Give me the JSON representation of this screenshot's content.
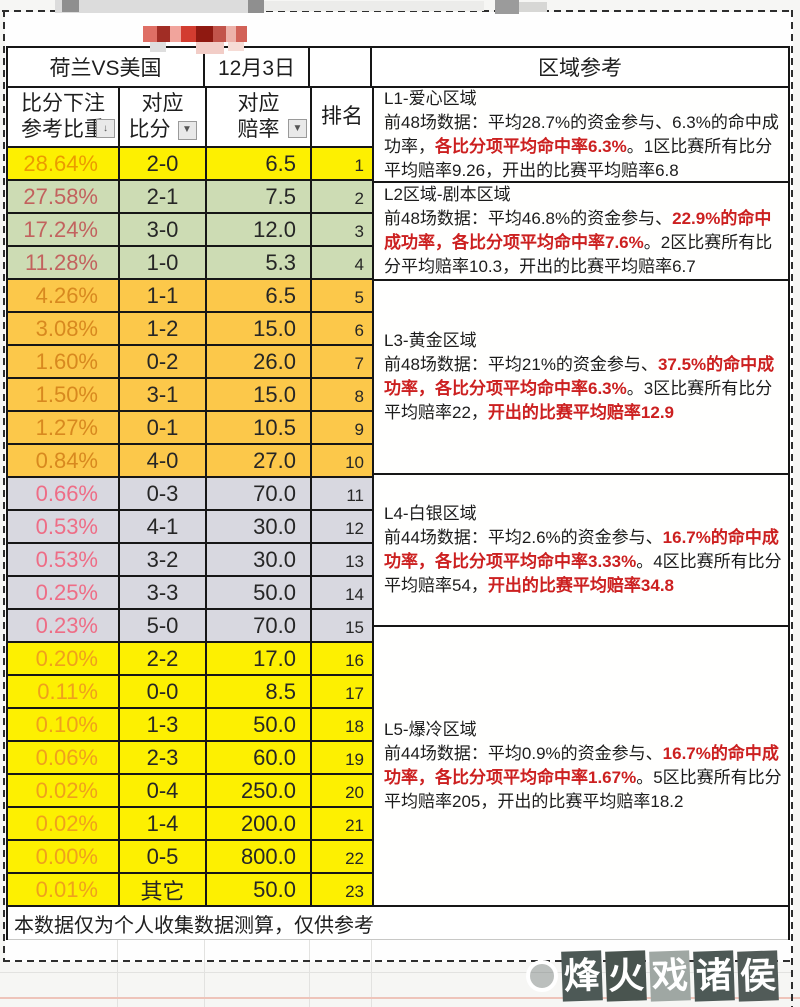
{
  "sheet": {
    "match": "荷兰VS美国",
    "date": "12月3日",
    "region_title": "区域参考",
    "columns": {
      "weight_l1": "比分下注",
      "weight_l2": "参考比重",
      "score_l1": "对应",
      "score_l2": "比分",
      "odds_l1": "对应",
      "odds_l2": "赔率",
      "rank": "排名"
    },
    "icons": {
      "sort_arrow": "↓",
      "dropdown_arrow": "▼"
    },
    "rows": [
      {
        "weight": "28.64%",
        "score": "2-0",
        "odds": "6.5",
        "rank": "1",
        "zone": 1
      },
      {
        "weight": "27.58%",
        "score": "2-1",
        "odds": "7.5",
        "rank": "2",
        "zone": 2
      },
      {
        "weight": "17.24%",
        "score": "3-0",
        "odds": "12.0",
        "rank": "3",
        "zone": 2
      },
      {
        "weight": "11.28%",
        "score": "1-0",
        "odds": "5.3",
        "rank": "4",
        "zone": 2
      },
      {
        "weight": "4.26%",
        "score": "1-1",
        "odds": "6.5",
        "rank": "5",
        "zone": 3
      },
      {
        "weight": "3.08%",
        "score": "1-2",
        "odds": "15.0",
        "rank": "6",
        "zone": 3
      },
      {
        "weight": "1.60%",
        "score": "0-2",
        "odds": "26.0",
        "rank": "7",
        "zone": 3
      },
      {
        "weight": "1.50%",
        "score": "3-1",
        "odds": "15.0",
        "rank": "8",
        "zone": 3
      },
      {
        "weight": "1.27%",
        "score": "0-1",
        "odds": "10.5",
        "rank": "9",
        "zone": 3
      },
      {
        "weight": "0.84%",
        "score": "4-0",
        "odds": "27.0",
        "rank": "10",
        "zone": 3
      },
      {
        "weight": "0.66%",
        "score": "0-3",
        "odds": "70.0",
        "rank": "11",
        "zone": 4
      },
      {
        "weight": "0.53%",
        "score": "4-1",
        "odds": "30.0",
        "rank": "12",
        "zone": 4
      },
      {
        "weight": "0.53%",
        "score": "3-2",
        "odds": "30.0",
        "rank": "13",
        "zone": 4
      },
      {
        "weight": "0.25%",
        "score": "3-3",
        "odds": "50.0",
        "rank": "14",
        "zone": 4
      },
      {
        "weight": "0.23%",
        "score": "5-0",
        "odds": "70.0",
        "rank": "15",
        "zone": 4
      },
      {
        "weight": "0.20%",
        "score": "2-2",
        "odds": "17.0",
        "rank": "16",
        "zone": 5
      },
      {
        "weight": "0.11%",
        "score": "0-0",
        "odds": "8.5",
        "rank": "17",
        "zone": 5
      },
      {
        "weight": "0.10%",
        "score": "1-3",
        "odds": "50.0",
        "rank": "18",
        "zone": 5
      },
      {
        "weight": "0.06%",
        "score": "2-3",
        "odds": "60.0",
        "rank": "19",
        "zone": 5
      },
      {
        "weight": "0.02%",
        "score": "0-4",
        "odds": "250.0",
        "rank": "20",
        "zone": 5
      },
      {
        "weight": "0.02%",
        "score": "1-4",
        "odds": "200.0",
        "rank": "21",
        "zone": 5
      },
      {
        "weight": "0.00%",
        "score": "0-5",
        "odds": "800.0",
        "rank": "22",
        "zone": 5
      },
      {
        "weight": "0.01%",
        "score": "其它",
        "odds": "50.0",
        "rank": "23",
        "zone": 5
      }
    ],
    "zones": [
      {
        "title": "L1-爱心区域",
        "segments": [
          {
            "text": "前48场数据：平均28.7%的资金参与、6.3%的命中成功率，",
            "red": false
          },
          {
            "text": "各比分项平均命中率6.3%",
            "red": true
          },
          {
            "text": "。1区比赛所有比分平均赔率9.26，开出的比赛平均赔率6.8",
            "red": false
          }
        ]
      },
      {
        "title": "L2区域-剧本区域",
        "segments": [
          {
            "text": "前48场数据：平均46.8%的资金参与、",
            "red": false
          },
          {
            "text": "22.9%的命中成功率，各比分项平均命中率7.6%",
            "red": true
          },
          {
            "text": "。2区比赛所有比分平均赔率10.3，开出的比赛平均赔率6.7",
            "red": false
          }
        ]
      },
      {
        "title": "L3-黄金区域",
        "segments": [
          {
            "text": "前48场数据：平均21%的资金参与、",
            "red": false
          },
          {
            "text": "37.5%的命中成功率，各比分项平均命中率6.3%",
            "red": true
          },
          {
            "text": "。3区比赛所有比分平均赔率22，",
            "red": false
          },
          {
            "text": "开出的比赛平均赔率12.9",
            "red": true
          }
        ]
      },
      {
        "title": "L4-白银区域",
        "segments": [
          {
            "text": "前44场数据：平均2.6%的资金参与、",
            "red": false
          },
          {
            "text": "16.7%的命中成功率，各比分项平均命中率3.33%",
            "red": true
          },
          {
            "text": "。4区比赛所有比分平均赔率54，",
            "red": false
          },
          {
            "text": "开出的比赛平均赔率34.8",
            "red": true
          }
        ]
      },
      {
        "title": "L5-爆冷区域",
        "segments": [
          {
            "text": "前44场数据：平均0.9%的资金参与、",
            "red": false
          },
          {
            "text": "16.7%的命中成功率，各比分项平均命中率1.67%",
            "red": true
          },
          {
            "text": "。5区比赛所有比分平均赔率205，开出的比赛平均赔率18.2",
            "red": false
          }
        ]
      }
    ],
    "disclaimer": "本数据仅为个人收集数据测算，仅供参考",
    "watermark": "烽火戏诸侯",
    "colors": {
      "zone1_bg": "#FDF001",
      "zone2_bg": "#CDDCB4",
      "zone3_bg": "#FCC84A",
      "zone4_bg": "#D8D8E0",
      "zone5_bg": "#FDF001",
      "zone1_weight_text": "#EB9B00",
      "zone2_weight_text": "#C2625E",
      "zone3_weight_text": "#D8891F",
      "zone4_weight_text": "#EE6D86",
      "zone5_weight_text": "#EFA11C",
      "highlight_red": "#CC2020",
      "watermark_tile": "#4D5956"
    }
  }
}
